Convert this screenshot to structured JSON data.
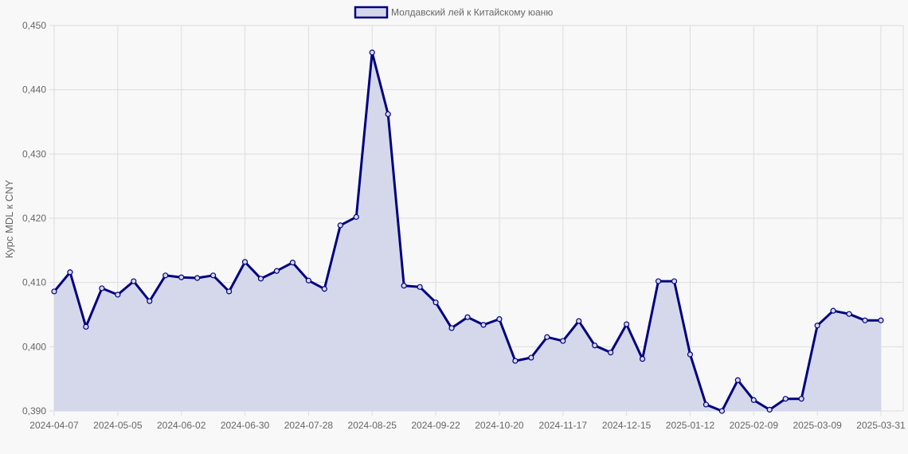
{
  "chart_data": {
    "type": "line",
    "title": "",
    "legend": {
      "position": "top",
      "entries": [
        "Молдавский лей к Китайскому юаню"
      ]
    },
    "xlabel": "",
    "ylabel": "Курс MDL к CNY",
    "ylim": [
      0.39,
      0.45
    ],
    "y_ticks": [
      "0,390",
      "0,400",
      "0,410",
      "0,420",
      "0,430",
      "0,440",
      "0,450"
    ],
    "y_tick_values": [
      0.39,
      0.4,
      0.41,
      0.42,
      0.43,
      0.44,
      0.45
    ],
    "x_tick_labels": [
      "2024-04-07",
      "2024-05-05",
      "2024-06-02",
      "2024-06-30",
      "2024-07-28",
      "2024-08-25",
      "2024-09-22",
      "2024-10-20",
      "2024-11-17",
      "2024-12-15",
      "2025-01-12",
      "2025-02-09",
      "2025-03-09",
      "2025-03-31"
    ],
    "x_tick_indices": [
      0,
      4,
      8,
      12,
      16,
      20,
      24,
      28,
      32,
      36,
      40,
      44,
      48,
      52
    ],
    "grid": true,
    "fill": true,
    "colors": {
      "line": "#000080",
      "fill": "#d5d8ea",
      "grid": "#dddddd",
      "background": "#f8f8f8"
    },
    "series": [
      {
        "name": "Молдавский лей к Китайскому юаню",
        "values": [
          0.4086,
          0.4116,
          0.4031,
          0.4091,
          0.4081,
          0.4102,
          0.4071,
          0.4111,
          0.4108,
          0.4107,
          0.4111,
          0.4086,
          0.4132,
          0.4106,
          0.4118,
          0.4131,
          0.4103,
          0.409,
          0.4189,
          0.4202,
          0.4458,
          0.4362,
          0.4095,
          0.4093,
          0.4069,
          0.4029,
          0.4046,
          0.4034,
          0.4043,
          0.3978,
          0.3983,
          0.4015,
          0.4009,
          0.404,
          0.4002,
          0.3991,
          0.4035,
          0.3981,
          0.4102,
          0.4102,
          0.3988,
          0.391,
          0.39,
          0.3948,
          0.3917,
          0.3902,
          0.3919,
          0.3919,
          0.4033,
          0.4056,
          0.4051,
          0.4041,
          0.4041
        ]
      }
    ]
  }
}
